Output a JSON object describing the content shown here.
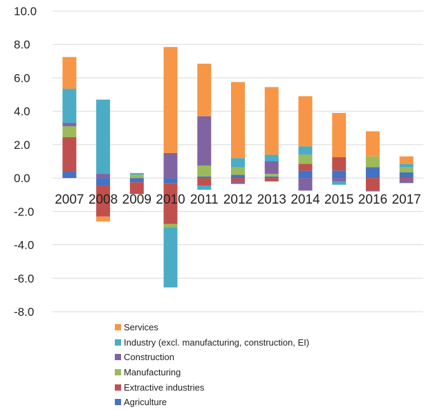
{
  "chart_data": {
    "type": "bar",
    "stacked": true,
    "categories": [
      "2007",
      "2008",
      "2009",
      "2010",
      "2011",
      "2012",
      "2013",
      "2014",
      "2015",
      "2016",
      "2017"
    ],
    "ylim": [
      -8,
      10
    ],
    "yticks": [
      "10.0",
      "8.0",
      "6.0",
      "4.0",
      "2.0",
      "0.0",
      "-2.0",
      "-4.0",
      "-6.0",
      "-8.0"
    ],
    "ytick_values": [
      10,
      8,
      6,
      4,
      2,
      0,
      -2,
      -4,
      -6,
      -8
    ],
    "grid": true,
    "legend_position": "bottom",
    "series": [
      {
        "name": "Agriculture",
        "color": "#4472c4",
        "values": [
          0.4,
          -0.45,
          -0.25,
          -0.3,
          0.1,
          0.2,
          0.1,
          0.45,
          0.45,
          0.65,
          0.35
        ]
      },
      {
        "name": "Extractive industries",
        "color": "#c0504d",
        "values": [
          2.05,
          -1.85,
          -0.7,
          -2.45,
          -0.45,
          -0.2,
          -0.2,
          0.4,
          0.8,
          -0.75,
          -0.1
        ]
      },
      {
        "name": "Manufacturing",
        "color": "#9bbb59",
        "values": [
          0.65,
          0.0,
          0.2,
          -0.2,
          0.65,
          0.45,
          0.15,
          0.55,
          0.0,
          0.65,
          0.3
        ]
      },
      {
        "name": "Construction",
        "color": "#8064a2",
        "values": [
          0.2,
          0.25,
          0.0,
          1.5,
          2.95,
          -0.15,
          0.75,
          -0.75,
          -0.2,
          -0.05,
          -0.2
        ]
      },
      {
        "name": "Industry (excl. manufacturing, construction, EI)",
        "color": "#4bacc6",
        "values": [
          2.05,
          4.45,
          0.1,
          -3.6,
          -0.25,
          0.55,
          0.4,
          0.5,
          -0.2,
          0.0,
          0.2
        ]
      },
      {
        "name": "Services",
        "color": "#f79646",
        "values": [
          1.9,
          -0.3,
          0.0,
          6.35,
          3.15,
          4.55,
          4.05,
          3.0,
          2.65,
          1.5,
          0.45
        ]
      }
    ],
    "legend_order": [
      "Services",
      "Industry (excl. manufacturing, construction, EI)",
      "Construction",
      "Manufacturing",
      "Extractive industries",
      "Agriculture"
    ]
  }
}
